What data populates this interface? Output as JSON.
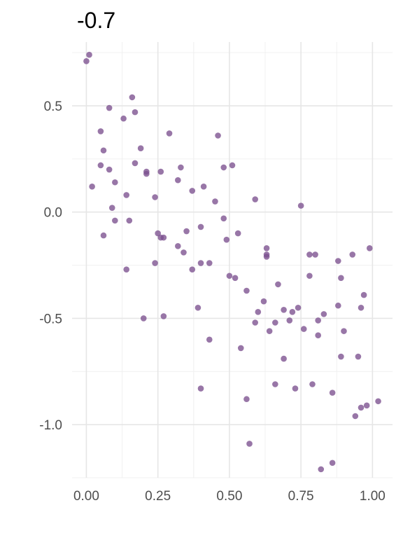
{
  "chart_data": {
    "type": "scatter",
    "title": "-0.7",
    "xlabel": "",
    "ylabel": "",
    "xlim": [
      -0.05,
      1.07
    ],
    "ylim": [
      -1.25,
      0.8
    ],
    "x_ticks": [
      0.0,
      0.25,
      0.5,
      0.75,
      1.0
    ],
    "x_tick_labels": [
      "0.00",
      "0.25",
      "0.50",
      "0.75",
      "1.00"
    ],
    "y_ticks": [
      -1.0,
      -0.5,
      0.0,
      0.5
    ],
    "y_tick_labels": [
      "-1.0",
      "-0.5",
      "0.0",
      "0.5"
    ],
    "grid": true,
    "point_color": "#7b4f8e",
    "points": [
      {
        "x": 0.0,
        "y": 0.71
      },
      {
        "x": 0.01,
        "y": 0.74
      },
      {
        "x": 0.02,
        "y": 0.12
      },
      {
        "x": 0.05,
        "y": 0.38
      },
      {
        "x": 0.05,
        "y": 0.22
      },
      {
        "x": 0.06,
        "y": 0.29
      },
      {
        "x": 0.06,
        "y": -0.11
      },
      {
        "x": 0.08,
        "y": 0.49
      },
      {
        "x": 0.08,
        "y": 0.2
      },
      {
        "x": 0.09,
        "y": 0.02
      },
      {
        "x": 0.1,
        "y": 0.14
      },
      {
        "x": 0.1,
        "y": -0.04
      },
      {
        "x": 0.13,
        "y": 0.44
      },
      {
        "x": 0.14,
        "y": 0.08
      },
      {
        "x": 0.14,
        "y": -0.27
      },
      {
        "x": 0.15,
        "y": -0.04
      },
      {
        "x": 0.16,
        "y": 0.54
      },
      {
        "x": 0.17,
        "y": 0.47
      },
      {
        "x": 0.17,
        "y": 0.23
      },
      {
        "x": 0.19,
        "y": 0.3
      },
      {
        "x": 0.2,
        "y": -0.5
      },
      {
        "x": 0.21,
        "y": 0.19
      },
      {
        "x": 0.21,
        "y": 0.18
      },
      {
        "x": 0.24,
        "y": 0.07
      },
      {
        "x": 0.24,
        "y": -0.24
      },
      {
        "x": 0.25,
        "y": -0.1
      },
      {
        "x": 0.26,
        "y": 0.19
      },
      {
        "x": 0.26,
        "y": -0.12
      },
      {
        "x": 0.27,
        "y": -0.12
      },
      {
        "x": 0.27,
        "y": -0.49
      },
      {
        "x": 0.29,
        "y": 0.37
      },
      {
        "x": 0.32,
        "y": 0.15
      },
      {
        "x": 0.32,
        "y": -0.16
      },
      {
        "x": 0.33,
        "y": 0.21
      },
      {
        "x": 0.34,
        "y": -0.19
      },
      {
        "x": 0.35,
        "y": -0.09
      },
      {
        "x": 0.37,
        "y": 0.1
      },
      {
        "x": 0.37,
        "y": -0.27
      },
      {
        "x": 0.39,
        "y": -0.45
      },
      {
        "x": 0.4,
        "y": -0.07
      },
      {
        "x": 0.4,
        "y": -0.24
      },
      {
        "x": 0.4,
        "y": -0.83
      },
      {
        "x": 0.41,
        "y": 0.12
      },
      {
        "x": 0.43,
        "y": -0.24
      },
      {
        "x": 0.43,
        "y": -0.6
      },
      {
        "x": 0.45,
        "y": 0.05
      },
      {
        "x": 0.46,
        "y": 0.36
      },
      {
        "x": 0.48,
        "y": 0.21
      },
      {
        "x": 0.48,
        "y": -0.03
      },
      {
        "x": 0.49,
        "y": -0.13
      },
      {
        "x": 0.5,
        "y": -0.3
      },
      {
        "x": 0.51,
        "y": 0.22
      },
      {
        "x": 0.52,
        "y": -0.31
      },
      {
        "x": 0.53,
        "y": -0.1
      },
      {
        "x": 0.54,
        "y": -0.64
      },
      {
        "x": 0.56,
        "y": -0.88
      },
      {
        "x": 0.56,
        "y": -0.37
      },
      {
        "x": 0.57,
        "y": -1.09
      },
      {
        "x": 0.59,
        "y": 0.06
      },
      {
        "x": 0.59,
        "y": -0.52
      },
      {
        "x": 0.6,
        "y": -0.47
      },
      {
        "x": 0.62,
        "y": -0.42
      },
      {
        "x": 0.63,
        "y": -0.17
      },
      {
        "x": 0.63,
        "y": -0.21
      },
      {
        "x": 0.63,
        "y": -0.2
      },
      {
        "x": 0.64,
        "y": -0.56
      },
      {
        "x": 0.66,
        "y": -0.81
      },
      {
        "x": 0.66,
        "y": -0.52
      },
      {
        "x": 0.67,
        "y": -0.34
      },
      {
        "x": 0.69,
        "y": -0.46
      },
      {
        "x": 0.69,
        "y": -0.69
      },
      {
        "x": 0.71,
        "y": -0.51
      },
      {
        "x": 0.72,
        "y": -0.47
      },
      {
        "x": 0.73,
        "y": -0.83
      },
      {
        "x": 0.74,
        "y": -0.45
      },
      {
        "x": 0.75,
        "y": 0.03
      },
      {
        "x": 0.76,
        "y": -0.55
      },
      {
        "x": 0.78,
        "y": -0.3
      },
      {
        "x": 0.78,
        "y": -0.2
      },
      {
        "x": 0.79,
        "y": -0.81
      },
      {
        "x": 0.8,
        "y": -0.2
      },
      {
        "x": 0.81,
        "y": -0.51
      },
      {
        "x": 0.81,
        "y": -0.58
      },
      {
        "x": 0.82,
        "y": -1.21
      },
      {
        "x": 0.83,
        "y": -0.48
      },
      {
        "x": 0.86,
        "y": -1.18
      },
      {
        "x": 0.86,
        "y": -0.85
      },
      {
        "x": 0.88,
        "y": -0.23
      },
      {
        "x": 0.88,
        "y": -0.44
      },
      {
        "x": 0.89,
        "y": -0.31
      },
      {
        "x": 0.89,
        "y": -0.68
      },
      {
        "x": 0.9,
        "y": -0.56
      },
      {
        "x": 0.93,
        "y": -0.2
      },
      {
        "x": 0.94,
        "y": -0.96
      },
      {
        "x": 0.95,
        "y": -0.68
      },
      {
        "x": 0.96,
        "y": -0.92
      },
      {
        "x": 0.96,
        "y": -0.45
      },
      {
        "x": 0.97,
        "y": -0.39
      },
      {
        "x": 0.98,
        "y": -0.91
      },
      {
        "x": 0.99,
        "y": -0.17
      },
      {
        "x": 1.02,
        "y": -0.89
      }
    ]
  }
}
